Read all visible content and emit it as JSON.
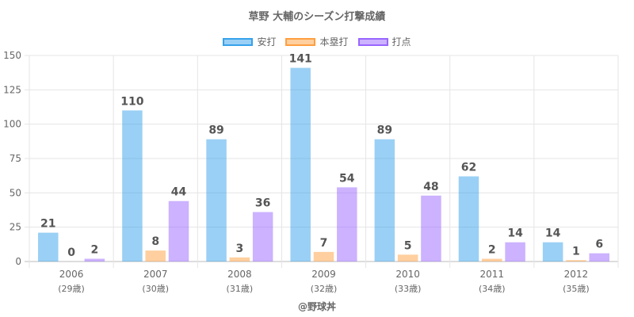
{
  "chart_data": {
    "type": "bar",
    "title": "草野 大輔のシーズン打撃成績",
    "categories": [
      "2006",
      "2007",
      "2008",
      "2009",
      "2010",
      "2011",
      "2012"
    ],
    "sublabels": [
      "(29歳)",
      "(30歳)",
      "(31歳)",
      "(32歳)",
      "(33歳)",
      "(34歳)",
      "(35歳)"
    ],
    "ylim": [
      0,
      150
    ],
    "yticks": [
      0,
      25,
      50,
      75,
      100,
      125,
      150
    ],
    "series": [
      {
        "name": "安打",
        "values": [
          21,
          110,
          89,
          141,
          89,
          62,
          14
        ],
        "color": "#36a2eb"
      },
      {
        "name": "本塁打",
        "values": [
          0,
          8,
          3,
          7,
          5,
          2,
          1
        ],
        "color": "#ff9f40"
      },
      {
        "name": "打点",
        "values": [
          2,
          44,
          36,
          54,
          48,
          14,
          6
        ],
        "color": "#9966ff"
      }
    ],
    "credit": "@野球丼"
  }
}
